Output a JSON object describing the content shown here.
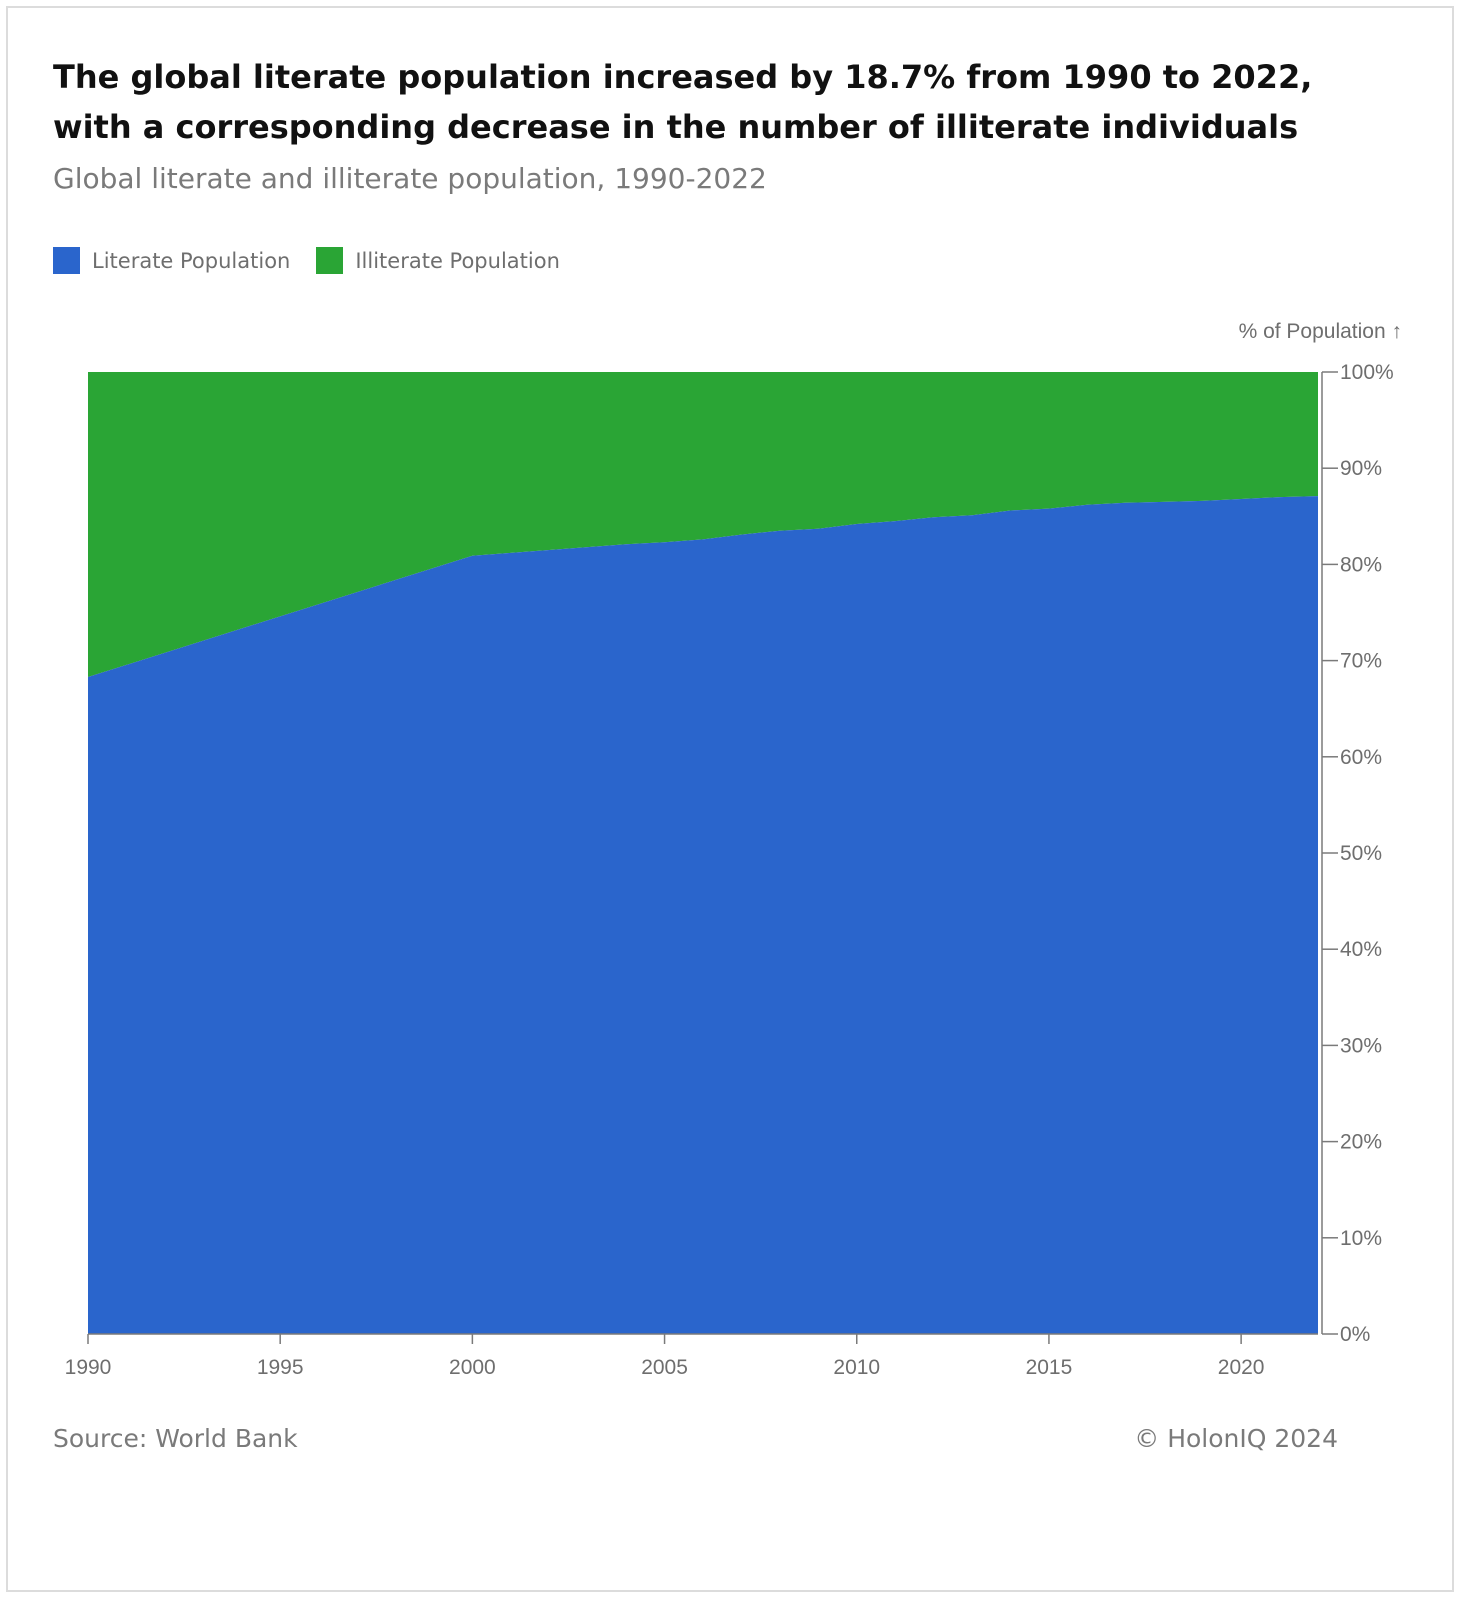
{
  "title": "The global literate population increased by 18.7% from 1990 to 2022, with a corresponding decrease in the number of illiterate individuals",
  "subtitle": "Global literate and illiterate population, 1990-2022",
  "legend": [
    {
      "label": "Literate Population",
      "color": "#2a65cc"
    },
    {
      "label": "Illiterate Population",
      "color": "#2aa535"
    }
  ],
  "footer": {
    "source": "Source: World Bank",
    "copyright": "© HolonIQ 2024"
  },
  "chart_data": {
    "type": "area",
    "stacked": true,
    "title": "The global literate population increased by 18.7% from 1990 to 2022, with a corresponding decrease in the number of illiterate individuals",
    "subtitle": "Global literate and illiterate population, 1990-2022",
    "xlabel": "",
    "ylabel": "% of Population ↑",
    "xlim": [
      1990,
      2022
    ],
    "ylim": [
      0,
      100
    ],
    "x_ticks": [
      1990,
      1995,
      2000,
      2005,
      2010,
      2015,
      2020
    ],
    "y_ticks": [
      0,
      10,
      20,
      30,
      40,
      50,
      60,
      70,
      80,
      90,
      100
    ],
    "y_tick_suffix": "%",
    "y_axis_side": "right",
    "legend_position": "top-left",
    "grid": false,
    "x": [
      1990,
      2000,
      2001,
      2002,
      2003,
      2004,
      2005,
      2006,
      2007,
      2008,
      2009,
      2010,
      2011,
      2012,
      2013,
      2014,
      2015,
      2016,
      2017,
      2018,
      2019,
      2020,
      2021,
      2022
    ],
    "series": [
      {
        "name": "Literate Population",
        "color": "#2a65cc",
        "values": [
          68.3,
          80.9,
          81.2,
          81.5,
          81.8,
          82.1,
          82.3,
          82.6,
          83.1,
          83.5,
          83.7,
          84.2,
          84.5,
          84.9,
          85.1,
          85.6,
          85.8,
          86.2,
          86.4,
          86.5,
          86.6,
          86.8,
          87.0,
          87.1
        ]
      },
      {
        "name": "Illiterate Population",
        "color": "#2aa535",
        "values": [
          31.7,
          19.1,
          18.8,
          18.5,
          18.2,
          17.9,
          17.7,
          17.4,
          16.9,
          16.5,
          16.3,
          15.8,
          15.5,
          15.1,
          14.9,
          14.4,
          14.2,
          13.8,
          13.6,
          13.5,
          13.4,
          13.2,
          13.0,
          12.9
        ]
      }
    ]
  }
}
